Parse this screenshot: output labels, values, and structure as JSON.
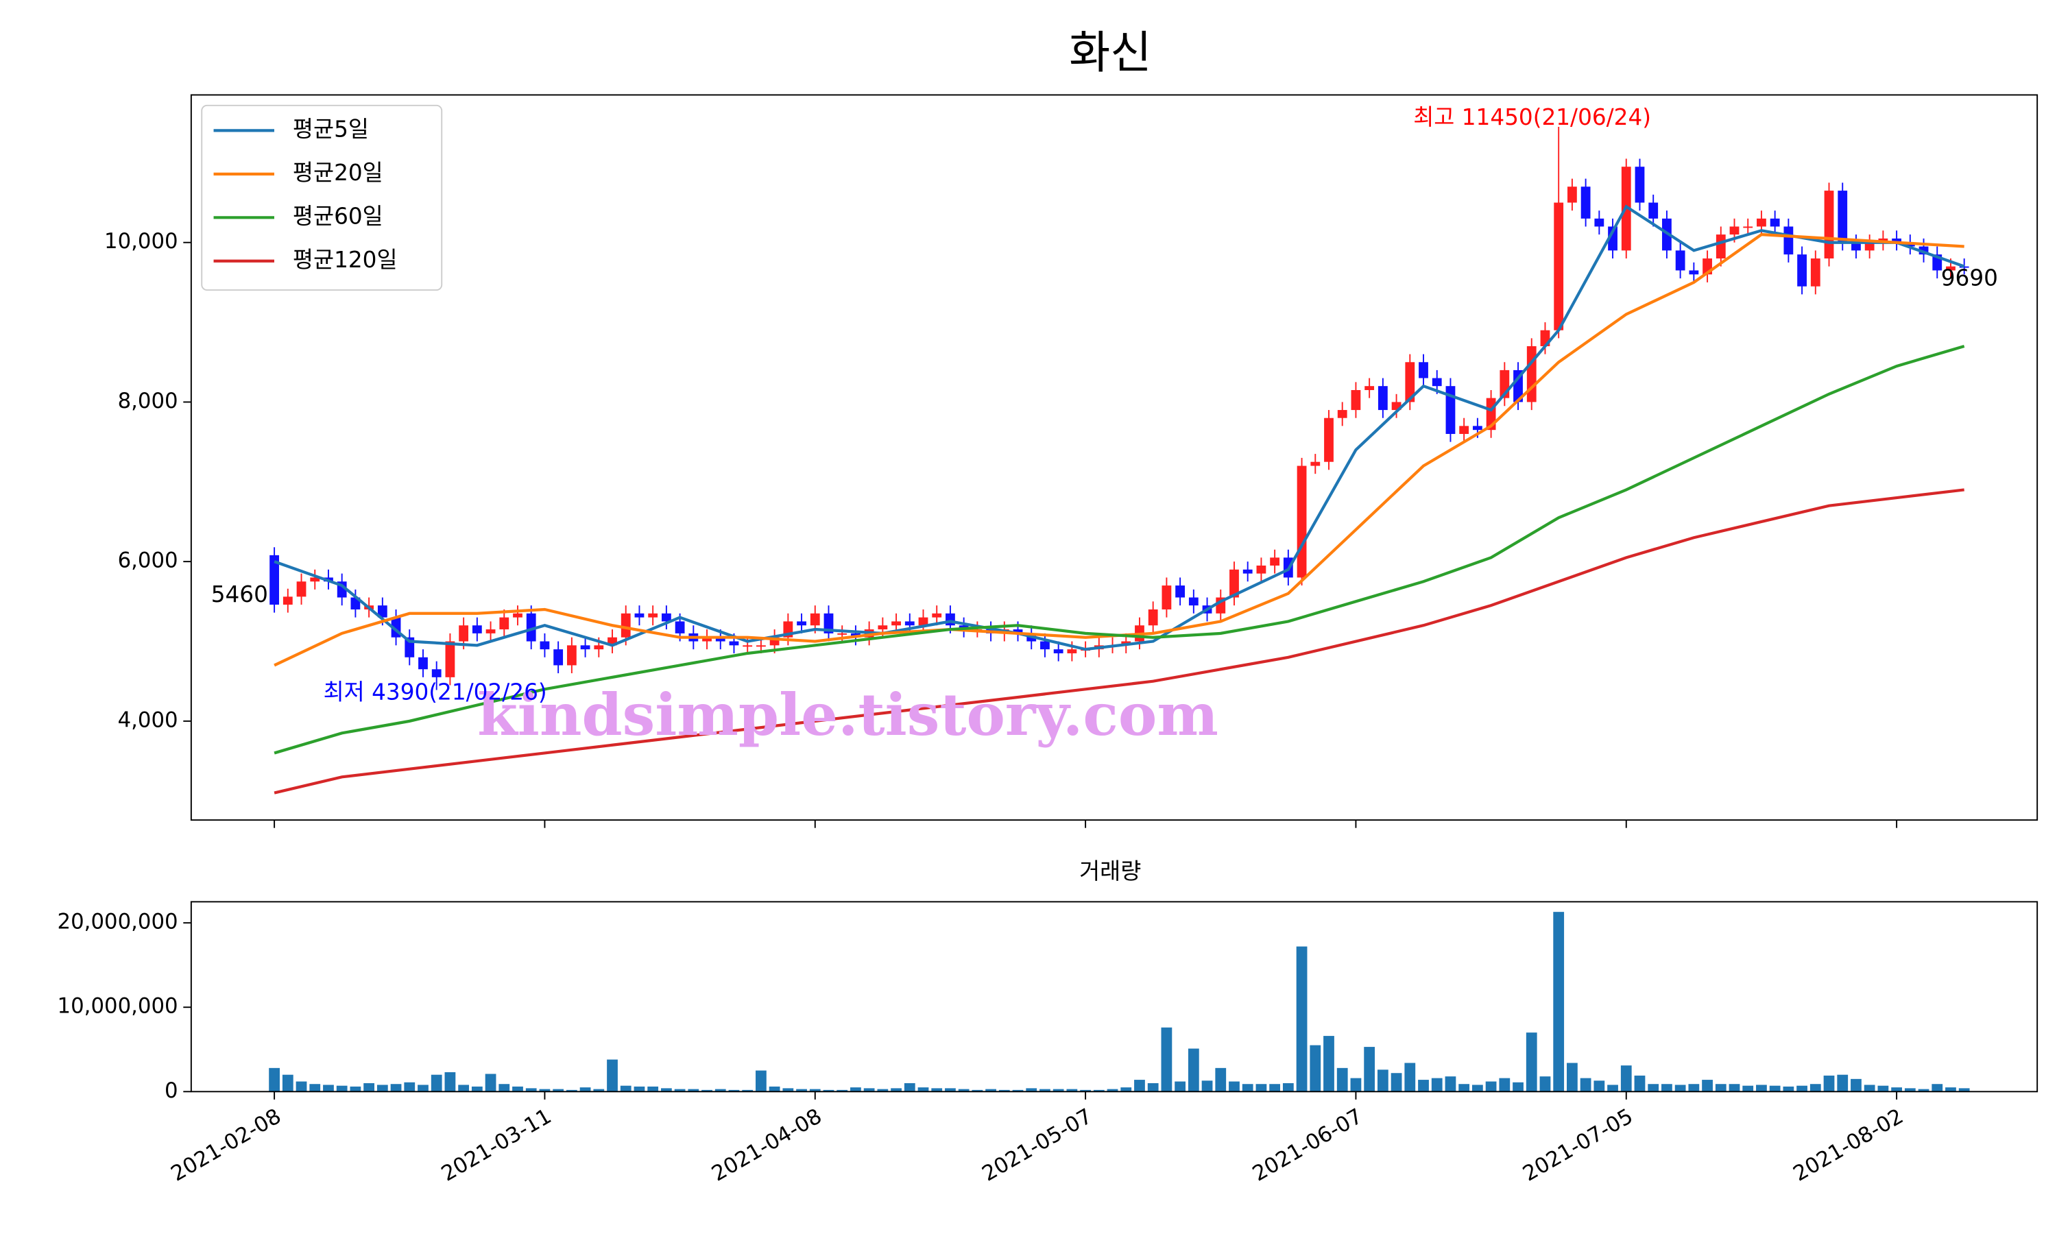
{
  "chart_data": [
    {
      "type": "candlestick",
      "title": "화신",
      "open": [
        6080,
        5460,
        5560,
        5750,
        5800,
        5750,
        5550,
        5400,
        5450,
        5300,
        5050,
        4800,
        4650,
        4550,
        5000,
        5200,
        5100,
        5150,
        5300,
        5350,
        5000,
        4900,
        4700,
        4950,
        4900,
        4950,
        5050,
        5350,
        5300,
        5350,
        5250,
        5100,
        5000,
        5050,
        5000,
        4950,
        4950,
        4950,
        5050,
        5250,
        5200,
        5350,
        5100,
        5100,
        5050,
        5150,
        5200,
        5250,
        5200,
        5300,
        5350,
        5200,
        5150,
        5150,
        5100,
        5150,
        5100,
        5000,
        4900,
        4850,
        4900,
        4900,
        4950,
        4950,
        5000,
        5200,
        5400,
        5700,
        5550,
        5450,
        5350,
        5550,
        5900,
        5850,
        5950,
        6050,
        5800,
        7200,
        7250,
        7800,
        7900,
        8150,
        8200,
        7900,
        8000,
        8500,
        8300,
        8200,
        7600,
        7700,
        7650,
        8050,
        8400,
        8000,
        8700,
        8900,
        10500,
        10700,
        10300,
        10200,
        9900,
        10950,
        10500,
        10300,
        9900,
        9650,
        9600,
        9800,
        10100,
        10200,
        10200,
        10300,
        10200,
        9850,
        9450,
        9800,
        10650,
        10000,
        9900,
        10000,
        10050,
        10000,
        9950,
        9850,
        9650,
        9700
      ],
      "high": [
        6180,
        5660,
        5850,
        5900,
        5900,
        5850,
        5650,
        5550,
        5550,
        5400,
        5150,
        4900,
        4750,
        5100,
        5300,
        5300,
        5250,
        5400,
        5450,
        5450,
        5100,
        5000,
        5050,
        5050,
        5050,
        5150,
        5450,
        5450,
        5450,
        5450,
        5350,
        5200,
        5150,
        5150,
        5100,
        5050,
        5050,
        5150,
        5350,
        5350,
        5450,
        5450,
        5200,
        5200,
        5250,
        5300,
        5350,
        5350,
        5400,
        5450,
        5450,
        5300,
        5250,
        5250,
        5250,
        5250,
        5200,
        5100,
        5000,
        5000,
        5000,
        5050,
        5050,
        5100,
        5300,
        5500,
        5800,
        5800,
        5650,
        5550,
        5650,
        6000,
        6000,
        6050,
        6150,
        6150,
        7300,
        7350,
        7900,
        8000,
        8250,
        8300,
        8300,
        8100,
        8600,
        8600,
        8400,
        8300,
        7800,
        7800,
        8150,
        8500,
        8500,
        8800,
        9000,
        11450,
        10800,
        10800,
        10400,
        10300,
        11050,
        11050,
        10600,
        10400,
        10000,
        9750,
        9900,
        10200,
        10300,
        10300,
        10400,
        10400,
        10300,
        9950,
        9900,
        10750,
        10750,
        10100,
        10100,
        10150,
        10150,
        10100,
        10050,
        9950,
        9800,
        9800
      ],
      "low": [
        5360,
        5360,
        5460,
        5650,
        5650,
        5450,
        5300,
        5300,
        5200,
        4950,
        4700,
        4550,
        4390,
        4450,
        4900,
        5000,
        5000,
        5050,
        5200,
        4900,
        4800,
        4600,
        4600,
        4800,
        4800,
        4850,
        4950,
        5200,
        5200,
        5150,
        5000,
        4900,
        4900,
        4900,
        4850,
        4850,
        4850,
        4850,
        4950,
        5100,
        5100,
        5000,
        5000,
        4950,
        4950,
        5050,
        5100,
        5100,
        5100,
        5200,
        5100,
        5050,
        5050,
        5000,
        5000,
        5000,
        4900,
        4800,
        4750,
        4750,
        4800,
        4800,
        4850,
        4850,
        4900,
        5100,
        5300,
        5450,
        5350,
        5250,
        5250,
        5450,
        5750,
        5750,
        5850,
        5700,
        5700,
        7100,
        7150,
        7700,
        7800,
        8050,
        7800,
        7800,
        7900,
        8200,
        8100,
        7500,
        7500,
        7550,
        7550,
        7950,
        7900,
        7900,
        8600,
        8800,
        10400,
        10200,
        10100,
        9800,
        9800,
        10400,
        10200,
        9800,
        9550,
        9500,
        9500,
        9700,
        10000,
        10100,
        10100,
        10100,
        9750,
        9350,
        9350,
        9700,
        9900,
        9800,
        9800,
        9900,
        9900,
        9850,
        9750,
        9550,
        9550,
        9600
      ],
      "close": [
        5460,
        5560,
        5750,
        5800,
        5750,
        5550,
        5400,
        5450,
        5300,
        5050,
        4800,
        4650,
        4550,
        5000,
        5200,
        5100,
        5150,
        5300,
        5350,
        5000,
        4900,
        4700,
        4950,
        4900,
        4950,
        5050,
        5350,
        5300,
        5350,
        5250,
        5100,
        5000,
        5050,
        5000,
        4950,
        4950,
        4950,
        5050,
        5250,
        5200,
        5350,
        5100,
        5100,
        5050,
        5150,
        5200,
        5250,
        5200,
        5300,
        5350,
        5200,
        5150,
        5150,
        5100,
        5150,
        5100,
        5000,
        4900,
        4850,
        4900,
        4900,
        4950,
        4950,
        5000,
        5200,
        5400,
        5700,
        5550,
        5450,
        5350,
        5550,
        5900,
        5850,
        5950,
        6050,
        5800,
        7200,
        7250,
        7800,
        7900,
        8150,
        8200,
        7900,
        8000,
        8500,
        8300,
        8200,
        7600,
        7700,
        7650,
        8050,
        8400,
        8000,
        8700,
        8900,
        10500,
        10700,
        10300,
        10200,
        9900,
        10950,
        10500,
        10300,
        9900,
        9650,
        9600,
        9800,
        10100,
        10200,
        10200,
        10300,
        10200,
        9850,
        9450,
        9800,
        10650,
        10000,
        9900,
        10000,
        10050,
        10000,
        9950,
        9850,
        9650,
        9700,
        9690
      ],
      "up_color": "#ff2020",
      "down_color": "#1010ff",
      "series": [
        {
          "name": "평균5일",
          "color": "#1f77b4",
          "x": [
            0,
            5,
            10,
            15,
            20,
            25,
            30,
            35,
            40,
            45,
            50,
            55,
            60,
            65,
            70,
            75,
            80,
            85,
            90,
            95,
            100,
            105,
            110,
            115,
            120,
            125
          ],
          "values": [
            6000,
            5700,
            5000,
            4950,
            5200,
            4950,
            5300,
            5000,
            5150,
            5100,
            5250,
            5100,
            4900,
            5000,
            5500,
            5900,
            7400,
            8200,
            7900,
            8900,
            10450,
            9900,
            10150,
            10000,
            10000,
            9700
          ]
        },
        {
          "name": "평균20일",
          "color": "#ff7f0e",
          "x": [
            0,
            5,
            10,
            15,
            20,
            25,
            30,
            35,
            40,
            45,
            50,
            55,
            60,
            65,
            70,
            75,
            80,
            85,
            90,
            95,
            100,
            105,
            110,
            115,
            120,
            125
          ],
          "values": [
            4700,
            5100,
            5350,
            5350,
            5400,
            5200,
            5050,
            5050,
            5000,
            5100,
            5150,
            5100,
            5050,
            5100,
            5250,
            5600,
            6400,
            7200,
            7700,
            8500,
            9100,
            9500,
            10100,
            10050,
            10000,
            9950
          ]
        },
        {
          "name": "평균60일",
          "color": "#2ca02c",
          "x": [
            0,
            5,
            10,
            15,
            20,
            25,
            30,
            35,
            40,
            45,
            50,
            55,
            60,
            65,
            70,
            75,
            80,
            85,
            90,
            95,
            100,
            105,
            110,
            115,
            120,
            125
          ],
          "values": [
            3600,
            3850,
            4000,
            4200,
            4400,
            4550,
            4700,
            4850,
            4950,
            5050,
            5150,
            5200,
            5100,
            5050,
            5100,
            5250,
            5500,
            5750,
            6050,
            6550,
            6900,
            7300,
            7700,
            8100,
            8450,
            8700
          ]
        },
        {
          "name": "평균120일",
          "color": "#d62728",
          "x": [
            0,
            5,
            10,
            15,
            20,
            25,
            30,
            35,
            40,
            45,
            50,
            55,
            60,
            65,
            70,
            75,
            80,
            85,
            90,
            95,
            100,
            105,
            110,
            115,
            120,
            125
          ],
          "values": [
            3100,
            3300,
            3400,
            3500,
            3600,
            3700,
            3800,
            3900,
            4000,
            4100,
            4200,
            4300,
            4400,
            4500,
            4650,
            4800,
            5000,
            5200,
            5450,
            5750,
            6050,
            6300,
            6500,
            6700,
            6800,
            6900
          ]
        }
      ],
      "xlim": [
        -6.15,
        130.4
      ],
      "ylim": [
        2760,
        11850
      ],
      "yticks": [
        {
          "value": 4000,
          "label": "4,000"
        },
        {
          "value": 6000,
          "label": "6,000"
        },
        {
          "value": 8000,
          "label": "8,000"
        },
        {
          "value": 10000,
          "label": "10,000"
        }
      ],
      "legend": "upper left",
      "annotations": [
        {
          "text": "최고 11450(21/06/24)",
          "color": "#ff0000"
        },
        {
          "text": "최저 4390(21/02/26)",
          "color": "#0000ff"
        },
        {
          "text": "5460",
          "color": "#000000"
        },
        {
          "text": "9690",
          "color": "#000000"
        }
      ],
      "watermark": "kindsimple.tistory.com"
    },
    {
      "type": "bar",
      "title": "거래량",
      "color": "#1f77b4",
      "values": [
        2800000,
        2000000,
        1200000,
        900000,
        800000,
        700000,
        600000,
        1000000,
        800000,
        900000,
        1100000,
        800000,
        2000000,
        2300000,
        800000,
        600000,
        2100000,
        900000,
        600000,
        400000,
        300000,
        300000,
        200000,
        500000,
        300000,
        3800000,
        700000,
        600000,
        600000,
        400000,
        300000,
        300000,
        200000,
        300000,
        200000,
        200000,
        2500000,
        600000,
        400000,
        300000,
        300000,
        200000,
        200000,
        500000,
        400000,
        300000,
        400000,
        1000000,
        500000,
        400000,
        400000,
        300000,
        200000,
        300000,
        200000,
        200000,
        400000,
        300000,
        300000,
        300000,
        200000,
        200000,
        300000,
        500000,
        1400000,
        1000000,
        7600000,
        1200000,
        5100000,
        1300000,
        2800000,
        1200000,
        900000,
        900000,
        900000,
        1000000,
        17200000,
        5500000,
        6600000,
        2800000,
        1600000,
        5300000,
        2600000,
        2200000,
        3400000,
        1400000,
        1600000,
        1800000,
        900000,
        800000,
        1200000,
        1600000,
        1100000,
        7000000,
        1800000,
        21300000,
        3400000,
        1600000,
        1300000,
        800000,
        3100000,
        1900000,
        900000,
        900000,
        800000,
        900000,
        1400000,
        900000,
        900000,
        700000,
        800000,
        700000,
        600000,
        700000,
        900000,
        1900000,
        2000000,
        1500000,
        800000,
        700000,
        500000,
        400000,
        300000,
        900000,
        500000,
        400000
      ],
      "xlim": [
        -6.15,
        130.4
      ],
      "ylim": [
        0,
        22500000
      ],
      "yticks": [
        0,
        {
          "value": 10000000,
          "label": "10,000,000"
        },
        {
          "value": 20000000,
          "label": "20,000,000"
        }
      ],
      "xticks": [
        {
          "value": 0,
          "label": "2021-02-08"
        },
        {
          "value": 20,
          "label": "2021-03-11"
        },
        {
          "value": 40,
          "label": "2021-04-08"
        },
        {
          "value": 60,
          "label": "2021-05-07"
        },
        {
          "value": 80,
          "label": "2021-06-07"
        },
        {
          "value": 100,
          "label": "2021-07-05"
        },
        {
          "value": 120,
          "label": "2021-08-02"
        }
      ]
    }
  ]
}
